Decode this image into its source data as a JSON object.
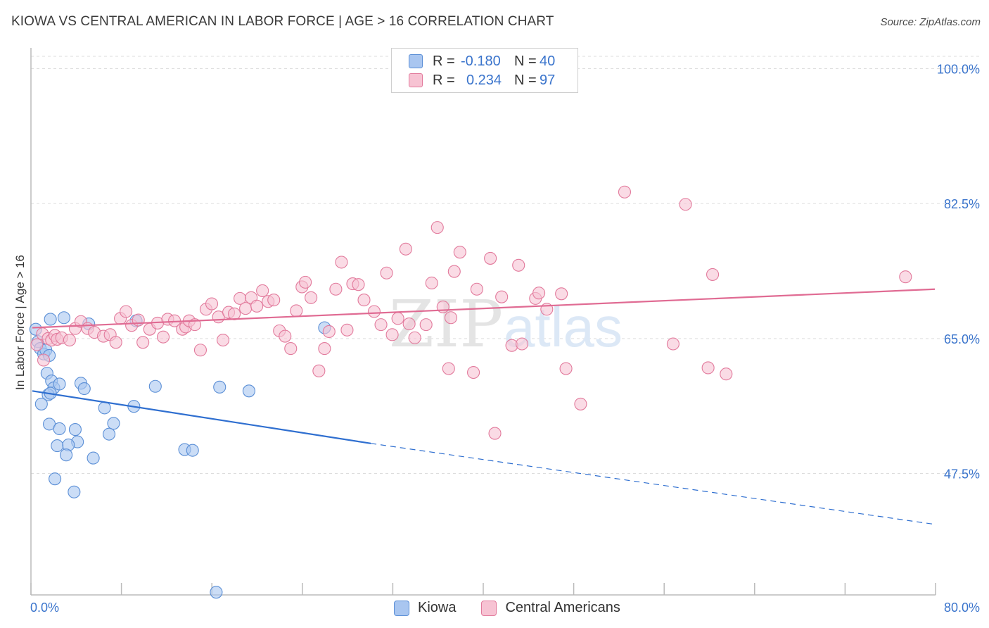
{
  "title": "KIOWA VS CENTRAL AMERICAN IN LABOR FORCE | AGE > 16 CORRELATION CHART",
  "source": "Source: ZipAtlas.com",
  "watermark": {
    "part1": "ZIP",
    "part2": "atlas"
  },
  "legend": {
    "rows": [
      {
        "label": "R = ",
        "r_value": "-0.180",
        "n_label": "N = ",
        "n_value": "40",
        "color": "#a9c6f0",
        "border": "#5b8fd6"
      },
      {
        "label": "R = ",
        "r_value": "0.234",
        "n_label": "N = ",
        "n_value": "97",
        "color": "#f7c3d3",
        "border": "#e27a9c"
      }
    ]
  },
  "bottom_legend": [
    {
      "name": "Kiowa",
      "color": "#a9c6f0",
      "border": "#5b8fd6"
    },
    {
      "name": "Central Americans",
      "color": "#f7c3d3",
      "border": "#e27a9c"
    }
  ],
  "chart_data": {
    "type": "scatter",
    "xlabel": "",
    "ylabel": "In Labor Force | Age > 16",
    "xlim": [
      0,
      80
    ],
    "ylim": [
      30,
      102
    ],
    "x_tick_labels": [
      "0.0%",
      "80.0%"
    ],
    "y_ticks": [
      {
        "value": 100,
        "label": "100.0%"
      },
      {
        "value": 82.5,
        "label": "82.5%"
      },
      {
        "value": 65,
        "label": "65.0%"
      },
      {
        "value": 47.5,
        "label": "47.5%"
      }
    ],
    "series": [
      {
        "name": "Kiowa",
        "color": "#a9c6f0",
        "stroke": "#5b8fd6",
        "line_color": "#2f6fd0",
        "trend": {
          "x0": 0,
          "y0": 58.2,
          "x1": 30,
          "y1": 51.4,
          "dash_to_x": 80,
          "dash_to_y": 40.9
        },
        "points": [
          [
            0.3,
            66.2
          ],
          [
            0.5,
            64.6
          ],
          [
            0.7,
            63.7
          ],
          [
            1.0,
            63.0
          ],
          [
            1.2,
            63.5
          ],
          [
            1.5,
            62.8
          ],
          [
            1.6,
            67.5
          ],
          [
            2.8,
            67.7
          ],
          [
            1.3,
            60.5
          ],
          [
            1.7,
            59.5
          ],
          [
            1.9,
            58.6
          ],
          [
            2.4,
            59.1
          ],
          [
            1.4,
            57.7
          ],
          [
            1.6,
            57.9
          ],
          [
            0.8,
            56.5
          ],
          [
            4.3,
            59.2
          ],
          [
            4.6,
            58.5
          ],
          [
            6.4,
            56.0
          ],
          [
            7.2,
            54.0
          ],
          [
            1.5,
            53.9
          ],
          [
            2.4,
            53.3
          ],
          [
            3.8,
            53.2
          ],
          [
            6.8,
            52.6
          ],
          [
            4.0,
            51.6
          ],
          [
            2.2,
            51.1
          ],
          [
            3.2,
            51.2
          ],
          [
            3.0,
            49.9
          ],
          [
            5.4,
            49.5
          ],
          [
            2.0,
            46.8
          ],
          [
            3.7,
            45.1
          ],
          [
            9.0,
            56.2
          ],
          [
            10.9,
            58.8
          ],
          [
            16.6,
            58.7
          ],
          [
            19.2,
            58.2
          ],
          [
            13.5,
            50.6
          ],
          [
            14.2,
            50.5
          ],
          [
            5.0,
            66.9
          ],
          [
            9.2,
            67.3
          ],
          [
            25.9,
            66.4
          ],
          [
            16.3,
            32.1
          ]
        ]
      },
      {
        "name": "Central Americans",
        "color": "#f7c3d3",
        "stroke": "#e27a9c",
        "line_color": "#e06b93",
        "trend": {
          "x0": 0,
          "y0": 66.4,
          "x1": 80,
          "y1": 71.4
        },
        "points": [
          [
            0.4,
            64.2
          ],
          [
            0.9,
            65.6
          ],
          [
            1.4,
            65.0
          ],
          [
            1.7,
            64.8
          ],
          [
            2.0,
            65.4
          ],
          [
            2.2,
            64.9
          ],
          [
            2.6,
            65.1
          ],
          [
            3.3,
            64.8
          ],
          [
            3.8,
            66.3
          ],
          [
            4.3,
            67.2
          ],
          [
            4.9,
            66.3
          ],
          [
            5.5,
            65.8
          ],
          [
            6.3,
            65.3
          ],
          [
            6.9,
            65.5
          ],
          [
            7.4,
            64.5
          ],
          [
            7.8,
            67.6
          ],
          [
            8.3,
            68.5
          ],
          [
            8.8,
            66.7
          ],
          [
            9.4,
            67.4
          ],
          [
            9.8,
            64.5
          ],
          [
            10.4,
            66.2
          ],
          [
            11.1,
            67.0
          ],
          [
            11.6,
            65.2
          ],
          [
            12.0,
            67.5
          ],
          [
            12.6,
            67.3
          ],
          [
            13.3,
            66.2
          ],
          [
            13.6,
            66.5
          ],
          [
            13.9,
            67.3
          ],
          [
            14.4,
            66.8
          ],
          [
            14.9,
            63.5
          ],
          [
            15.4,
            68.8
          ],
          [
            15.9,
            69.5
          ],
          [
            16.5,
            67.8
          ],
          [
            16.9,
            64.8
          ],
          [
            17.4,
            68.4
          ],
          [
            17.9,
            68.2
          ],
          [
            18.4,
            70.2
          ],
          [
            18.9,
            68.9
          ],
          [
            19.4,
            70.3
          ],
          [
            19.9,
            69.2
          ],
          [
            20.4,
            71.2
          ],
          [
            20.9,
            69.8
          ],
          [
            21.4,
            70.0
          ],
          [
            21.9,
            66.0
          ],
          [
            22.4,
            65.3
          ],
          [
            22.9,
            63.7
          ],
          [
            23.4,
            68.6
          ],
          [
            23.9,
            71.7
          ],
          [
            24.2,
            72.3
          ],
          [
            24.7,
            70.3
          ],
          [
            25.4,
            60.8
          ],
          [
            25.9,
            63.7
          ],
          [
            26.3,
            65.9
          ],
          [
            26.9,
            71.4
          ],
          [
            27.4,
            74.9
          ],
          [
            27.9,
            66.1
          ],
          [
            28.4,
            72.1
          ],
          [
            28.9,
            72.0
          ],
          [
            29.4,
            70.0
          ],
          [
            30.3,
            68.5
          ],
          [
            30.9,
            66.8
          ],
          [
            31.4,
            73.5
          ],
          [
            31.9,
            65.5
          ],
          [
            32.4,
            67.6
          ],
          [
            33.1,
            76.6
          ],
          [
            33.4,
            66.9
          ],
          [
            33.9,
            65.1
          ],
          [
            34.9,
            66.8
          ],
          [
            35.4,
            72.2
          ],
          [
            35.9,
            79.4
          ],
          [
            36.4,
            69.1
          ],
          [
            36.9,
            61.1
          ],
          [
            37.1,
            67.7
          ],
          [
            37.4,
            73.7
          ],
          [
            37.9,
            76.2
          ],
          [
            39.1,
            60.6
          ],
          [
            39.4,
            71.4
          ],
          [
            40.6,
            75.4
          ],
          [
            41.0,
            52.7
          ],
          [
            41.6,
            70.4
          ],
          [
            42.5,
            64.1
          ],
          [
            43.1,
            74.5
          ],
          [
            43.4,
            64.3
          ],
          [
            44.6,
            70.2
          ],
          [
            44.9,
            70.9
          ],
          [
            45.6,
            68.8
          ],
          [
            46.9,
            70.8
          ],
          [
            47.3,
            61.1
          ],
          [
            48.6,
            56.5
          ],
          [
            52.5,
            84.0
          ],
          [
            56.8,
            64.3
          ],
          [
            57.9,
            82.4
          ],
          [
            59.9,
            61.2
          ],
          [
            60.3,
            73.3
          ],
          [
            61.5,
            60.4
          ],
          [
            77.4,
            73.0
          ],
          [
            1.0,
            62.2
          ]
        ]
      }
    ]
  }
}
